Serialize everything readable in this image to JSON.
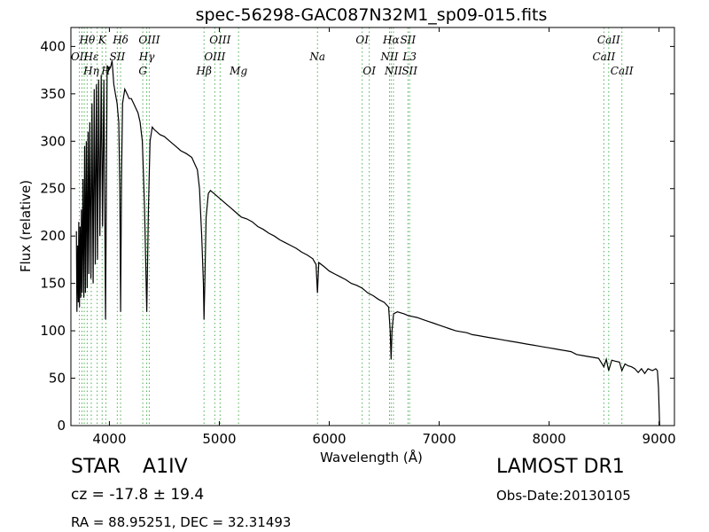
{
  "chart_data": {
    "type": "line",
    "title": "spec-56298-GAC087N32M1_sp09-015.fits",
    "xlabel": "Wavelength (Å)",
    "ylabel": "Flux (relative)",
    "xlim": [
      3650,
      9140
    ],
    "ylim": [
      0,
      420
    ],
    "xticks": [
      4000,
      5000,
      6000,
      7000,
      8000,
      9000
    ],
    "yticks": [
      0,
      50,
      100,
      150,
      200,
      250,
      300,
      350,
      400
    ],
    "grid": false,
    "legend": "none",
    "line_color": "#000000",
    "marker_color": "#4caf50",
    "series": [
      {
        "points": [
          [
            3700,
            205
          ],
          [
            3705,
            120
          ],
          [
            3712,
            190
          ],
          [
            3718,
            130
          ],
          [
            3722,
            215
          ],
          [
            3728,
            125
          ],
          [
            3734,
            210
          ],
          [
            3740,
            135
          ],
          [
            3746,
            228
          ],
          [
            3752,
            140
          ],
          [
            3760,
            260
          ],
          [
            3768,
            135
          ],
          [
            3775,
            295
          ],
          [
            3782,
            140
          ],
          [
            3790,
            300
          ],
          [
            3798,
            145
          ],
          [
            3806,
            310
          ],
          [
            3814,
            160
          ],
          [
            3822,
            320
          ],
          [
            3832,
            155
          ],
          [
            3842,
            340
          ],
          [
            3852,
            150
          ],
          [
            3862,
            355
          ],
          [
            3872,
            170
          ],
          [
            3882,
            360
          ],
          [
            3892,
            175
          ],
          [
            3902,
            365
          ],
          [
            3914,
            200
          ],
          [
            3926,
            370
          ],
          [
            3938,
            210
          ],
          [
            3950,
            365
          ],
          [
            3965,
            112
          ],
          [
            3980,
            380
          ],
          [
            3995,
            375
          ],
          [
            4010,
            378
          ],
          [
            4025,
            385
          ],
          [
            4040,
            360
          ],
          [
            4055,
            350
          ],
          [
            4070,
            340
          ],
          [
            4085,
            320
          ],
          [
            4095,
            250
          ],
          [
            4102,
            120
          ],
          [
            4110,
            260
          ],
          [
            4120,
            340
          ],
          [
            4140,
            355
          ],
          [
            4160,
            350
          ],
          [
            4180,
            345
          ],
          [
            4200,
            345
          ],
          [
            4220,
            340
          ],
          [
            4240,
            335
          ],
          [
            4260,
            330
          ],
          [
            4280,
            320
          ],
          [
            4300,
            300
          ],
          [
            4320,
            230
          ],
          [
            4340,
            120
          ],
          [
            4355,
            230
          ],
          [
            4370,
            300
          ],
          [
            4390,
            315
          ],
          [
            4410,
            312
          ],
          [
            4430,
            310
          ],
          [
            4460,
            307
          ],
          [
            4500,
            305
          ],
          [
            4550,
            300
          ],
          [
            4600,
            295
          ],
          [
            4650,
            290
          ],
          [
            4700,
            287
          ],
          [
            4750,
            283
          ],
          [
            4780,
            275
          ],
          [
            4800,
            270
          ],
          [
            4820,
            250
          ],
          [
            4840,
            200
          ],
          [
            4855,
            150
          ],
          [
            4861,
            112
          ],
          [
            4868,
            150
          ],
          [
            4880,
            220
          ],
          [
            4900,
            245
          ],
          [
            4920,
            248
          ],
          [
            4950,
            245
          ],
          [
            5000,
            240
          ],
          [
            5050,
            235
          ],
          [
            5100,
            230
          ],
          [
            5150,
            225
          ],
          [
            5200,
            220
          ],
          [
            5250,
            218
          ],
          [
            5300,
            215
          ],
          [
            5350,
            210
          ],
          [
            5400,
            207
          ],
          [
            5450,
            203
          ],
          [
            5500,
            200
          ],
          [
            5550,
            196
          ],
          [
            5600,
            193
          ],
          [
            5650,
            190
          ],
          [
            5700,
            187
          ],
          [
            5750,
            183
          ],
          [
            5800,
            180
          ],
          [
            5850,
            176
          ],
          [
            5880,
            170
          ],
          [
            5893,
            140
          ],
          [
            5905,
            172
          ],
          [
            5950,
            168
          ],
          [
            6000,
            163
          ],
          [
            6050,
            160
          ],
          [
            6100,
            157
          ],
          [
            6150,
            154
          ],
          [
            6200,
            150
          ],
          [
            6250,
            148
          ],
          [
            6300,
            145
          ],
          [
            6350,
            140
          ],
          [
            6400,
            137
          ],
          [
            6450,
            133
          ],
          [
            6500,
            130
          ],
          [
            6540,
            125
          ],
          [
            6555,
            100
          ],
          [
            6563,
            70
          ],
          [
            6571,
            100
          ],
          [
            6585,
            118
          ],
          [
            6620,
            120
          ],
          [
            6680,
            118
          ],
          [
            6720,
            116
          ],
          [
            6760,
            115
          ],
          [
            6800,
            114
          ],
          [
            6850,
            112
          ],
          [
            6900,
            110
          ],
          [
            6950,
            108
          ],
          [
            7000,
            106
          ],
          [
            7050,
            104
          ],
          [
            7100,
            102
          ],
          [
            7150,
            100
          ],
          [
            7200,
            99
          ],
          [
            7250,
            98
          ],
          [
            7300,
            96
          ],
          [
            7350,
            95
          ],
          [
            7400,
            94
          ],
          [
            7450,
            93
          ],
          [
            7500,
            92
          ],
          [
            7550,
            91
          ],
          [
            7600,
            90
          ],
          [
            7650,
            89
          ],
          [
            7700,
            88
          ],
          [
            7750,
            87
          ],
          [
            7800,
            86
          ],
          [
            7850,
            85
          ],
          [
            7900,
            84
          ],
          [
            7950,
            83
          ],
          [
            8000,
            82
          ],
          [
            8050,
            81
          ],
          [
            8100,
            80
          ],
          [
            8150,
            79
          ],
          [
            8200,
            78
          ],
          [
            8250,
            75
          ],
          [
            8300,
            74
          ],
          [
            8350,
            73
          ],
          [
            8400,
            72
          ],
          [
            8450,
            71
          ],
          [
            8498,
            62
          ],
          [
            8520,
            70
          ],
          [
            8542,
            58
          ],
          [
            8570,
            69
          ],
          [
            8600,
            68
          ],
          [
            8640,
            67
          ],
          [
            8662,
            58
          ],
          [
            8690,
            65
          ],
          [
            8720,
            63
          ],
          [
            8750,
            62
          ],
          [
            8780,
            60
          ],
          [
            8810,
            56
          ],
          [
            8840,
            60
          ],
          [
            8870,
            55
          ],
          [
            8900,
            60
          ],
          [
            8940,
            58
          ],
          [
            8970,
            60
          ],
          [
            8985,
            58
          ],
          [
            8995,
            40
          ],
          [
            9005,
            0
          ]
        ]
      }
    ],
    "annotations": [
      {
        "text": "Hθ",
        "x": 3798,
        "row": 1
      },
      {
        "text": "K",
        "x": 3934,
        "row": 1
      },
      {
        "text": "Hδ",
        "x": 4102,
        "row": 1
      },
      {
        "text": "OIII",
        "x": 4363,
        "row": 1
      },
      {
        "text": "OIII",
        "x": 5007,
        "row": 1
      },
      {
        "text": "OI",
        "x": 6300,
        "row": 1
      },
      {
        "text": "Hα",
        "x": 6563,
        "row": 1
      },
      {
        "text": "SII",
        "x": 6716,
        "row": 1
      },
      {
        "text": "CaII",
        "x": 8542,
        "row": 1
      },
      {
        "text": "OII",
        "x": 3727,
        "row": 2
      },
      {
        "text": "Hε",
        "x": 3835,
        "row": 2
      },
      {
        "text": "SII",
        "x": 4072,
        "row": 2
      },
      {
        "text": "Hγ",
        "x": 4340,
        "row": 2
      },
      {
        "text": "OIII",
        "x": 4959,
        "row": 2
      },
      {
        "text": "Na",
        "x": 5893,
        "row": 2
      },
      {
        "text": "NII",
        "x": 6548,
        "row": 2
      },
      {
        "text": "L3",
        "x": 6731,
        "row": 2
      },
      {
        "text": "CaII",
        "x": 8498,
        "row": 2
      },
      {
        "text": "Hη",
        "x": 3835,
        "row": 3
      },
      {
        "text": "H",
        "x": 3968,
        "row": 3
      },
      {
        "text": "G",
        "x": 4304,
        "row": 3
      },
      {
        "text": "Hβ",
        "x": 4861,
        "row": 3
      },
      {
        "text": "Mg",
        "x": 5175,
        "row": 3
      },
      {
        "text": "OI",
        "x": 6364,
        "row": 3
      },
      {
        "text": "NII",
        "x": 6584,
        "row": 3
      },
      {
        "text": "SII",
        "x": 6731,
        "row": 3
      },
      {
        "text": "CaII",
        "x": 8662,
        "row": 3
      }
    ],
    "marker_lines": [
      3727,
      3750,
      3771,
      3798,
      3835,
      3889,
      3934,
      3968,
      4072,
      4102,
      4304,
      4340,
      4363,
      4861,
      4959,
      5007,
      5175,
      5893,
      6300,
      6364,
      6548,
      6563,
      6584,
      6716,
      6731,
      8498,
      8542,
      8662
    ]
  },
  "info": {
    "object_type": "STAR",
    "subclass": "A1IV",
    "survey": "LAMOST DR1",
    "cz": "cz = -17.8 ± 19.4",
    "obs_date": "Obs-Date:20130105",
    "coords": "RA = 88.95251, DEC = 32.31493"
  }
}
